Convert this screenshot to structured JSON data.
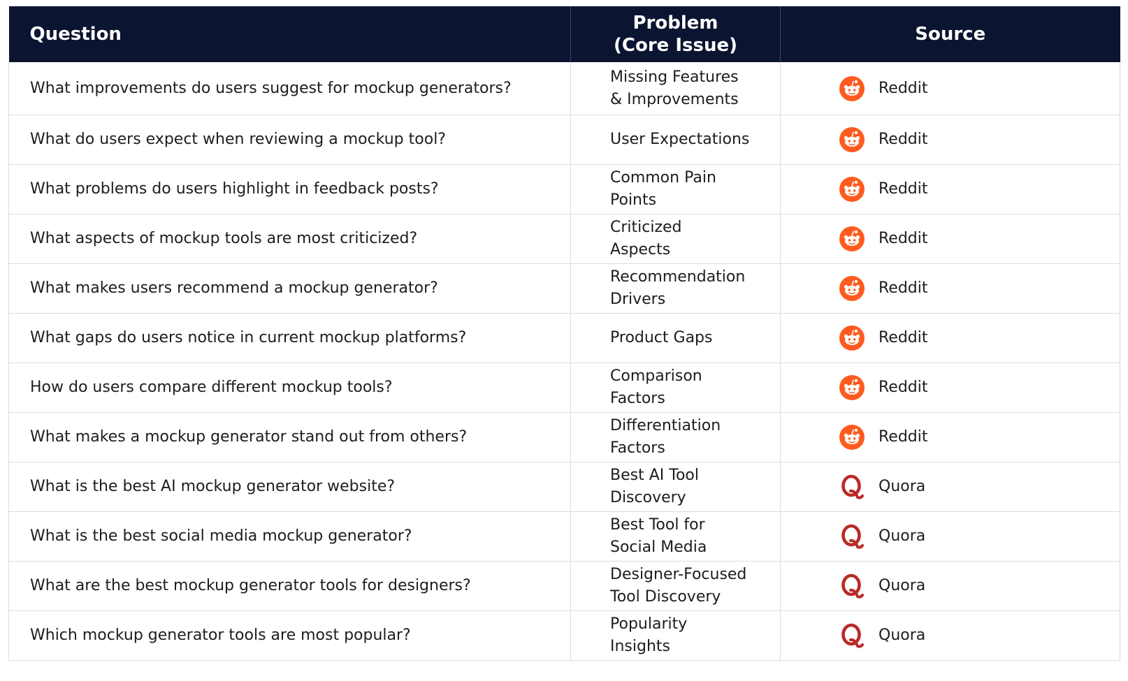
{
  "table": {
    "headers": {
      "question": "Question",
      "problem_line1": "Problem",
      "problem_line2": "(Core Issue)",
      "source": "Source"
    },
    "rows": [
      {
        "question": "What improvements do users suggest for mockup generators?",
        "problem_line1": "Missing Features",
        "problem_line2": "& Improvements",
        "source": "Reddit",
        "icon": "reddit-icon"
      },
      {
        "question": "What do users expect when reviewing a mockup tool?",
        "problem_line1": "User Expectations",
        "problem_line2": "",
        "source": "Reddit",
        "icon": "reddit-icon"
      },
      {
        "question": "What problems do users highlight in feedback posts?",
        "problem_line1": "Common Pain",
        "problem_line2": "Points",
        "source": "Reddit",
        "icon": "reddit-icon"
      },
      {
        "question": "What aspects of mockup tools are most criticized?",
        "problem_line1": "Criticized",
        "problem_line2": "Aspects",
        "source": "Reddit",
        "icon": "reddit-icon"
      },
      {
        "question": "What makes users recommend a mockup generator?",
        "problem_line1": "Recommendation",
        "problem_line2": "Drivers",
        "source": "Reddit",
        "icon": "reddit-icon"
      },
      {
        "question": "What gaps do users notice in current mockup platforms?",
        "problem_line1": "Product Gaps",
        "problem_line2": "",
        "source": "Reddit",
        "icon": "reddit-icon"
      },
      {
        "question": "How do users compare different mockup tools?",
        "problem_line1": "Comparison",
        "problem_line2": "Factors",
        "source": "Reddit",
        "icon": "reddit-icon"
      },
      {
        "question": "What makes a mockup generator stand out from others?",
        "problem_line1": "Differentiation",
        "problem_line2": "Factors",
        "source": "Reddit",
        "icon": "reddit-icon"
      },
      {
        "question": "What is the best AI mockup generator website?",
        "problem_line1": "Best AI Tool",
        "problem_line2": "Discovery",
        "source": "Quora",
        "icon": "quora-icon"
      },
      {
        "question": "What is the best social media mockup generator?",
        "problem_line1": "Best Tool for",
        "problem_line2": "Social Media",
        "source": "Quora",
        "icon": "quora-icon"
      },
      {
        "question": "What are the best mockup generator tools for designers?",
        "problem_line1": "Designer-Focused",
        "problem_line2": "Tool Discovery",
        "source": "Quora",
        "icon": "quora-icon"
      },
      {
        "question": "Which mockup generator tools are most popular?",
        "problem_line1": "Popularity",
        "problem_line2": "Insights",
        "source": "Quora",
        "icon": "quora-icon"
      }
    ]
  },
  "colors": {
    "header_bg": "#0b1430",
    "header_text": "#ffffff",
    "reddit_orange": "#ff5b1f",
    "quora_red": "#b92b27",
    "row_divider": "#dcdcdc"
  }
}
